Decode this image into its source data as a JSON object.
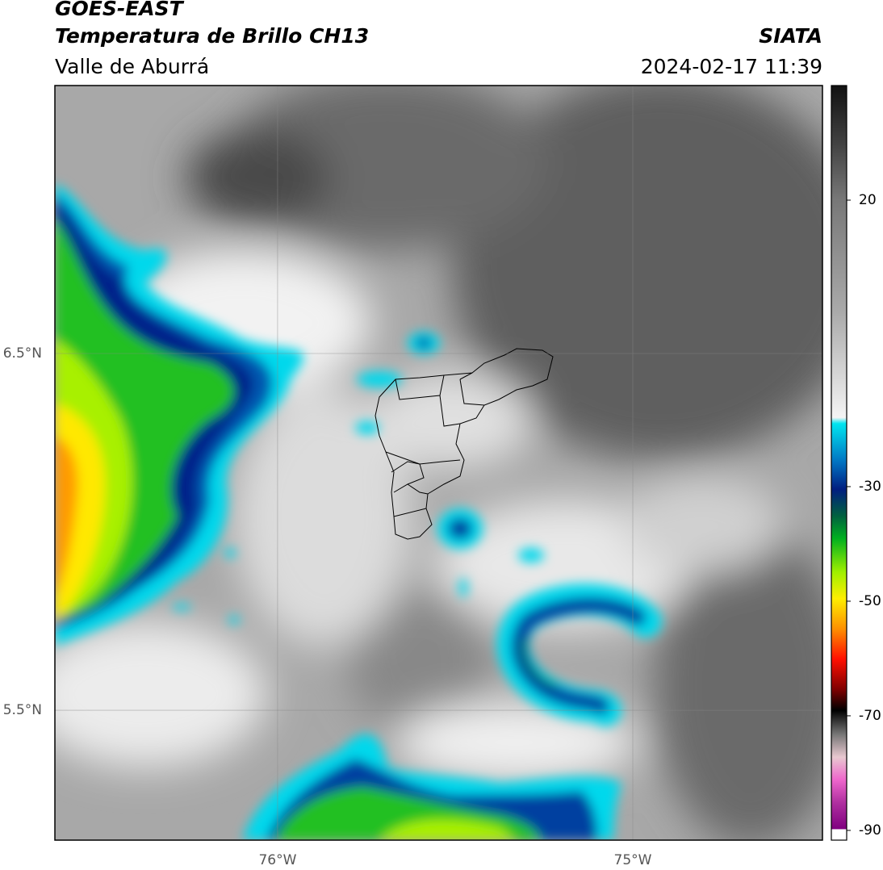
{
  "header": {
    "title": "GOES-EAST",
    "subtitle": "Temperatura de Brillo CH13",
    "region": "Valle de Aburrá",
    "source": "SIATA",
    "datetime": "2024-02-17 11:39"
  },
  "map": {
    "lon_range": [
      -76.627,
      -74.466
    ],
    "lat_range": [
      5.136,
      7.251
    ],
    "lon_ticks": [
      {
        "value": -76,
        "label": "76°W"
      },
      {
        "value": -75,
        "label": "75°W"
      }
    ],
    "lat_ticks": [
      {
        "value": 6.5,
        "label": "6.5°N"
      },
      {
        "value": 5.5,
        "label": "5.5°N"
      }
    ]
  },
  "colorbar": {
    "range": [
      -91.7,
      40
    ],
    "ticks": [
      20,
      -30,
      -50,
      -70,
      -90
    ]
  }
}
